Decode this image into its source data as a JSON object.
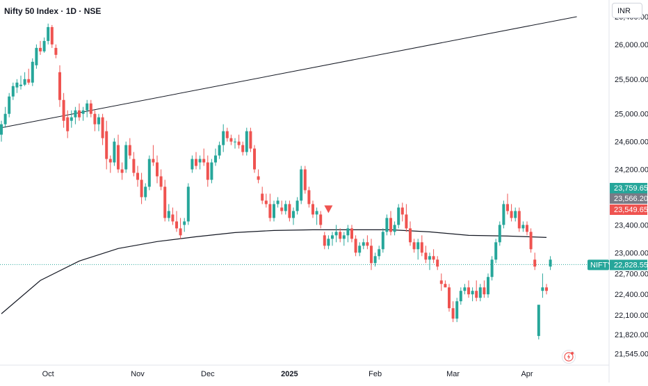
{
  "header": {
    "title": "Nifty 50 Index · 1D · NSE",
    "currency": "INR"
  },
  "colors": {
    "up": "#26a69a",
    "down": "#ef5350",
    "ma": "#131722",
    "trendline": "#131722",
    "price_line": "#26a69a",
    "grey_tag": "#787b86",
    "marker": "#ef5350"
  },
  "chart_data": {
    "type": "candlestick",
    "title": "Nifty 50 Index · 1D · NSE",
    "y_ticks": [
      26400,
      26000,
      25500,
      25000,
      24600,
      24200,
      23400,
      23000,
      22700,
      22400,
      22100,
      21820,
      21545
    ],
    "y_tick_labels": [
      "26,400.00",
      "26,000.00",
      "25,500.00",
      "25,000.00",
      "24,600.00",
      "24,200.00",
      "23,400.00",
      "23,000.00",
      "22,700.00",
      "22,400.00",
      "22,100.00",
      "21,820.00",
      "21,545.00"
    ],
    "ylim": [
      21380,
      26640
    ],
    "x_labels": [
      {
        "index": 12,
        "label": "Oct"
      },
      {
        "index": 35,
        "label": "Nov"
      },
      {
        "index": 53,
        "label": "Dec"
      },
      {
        "index": 74,
        "label": "2025"
      },
      {
        "index": 96,
        "label": "Feb"
      },
      {
        "index": 116,
        "label": "Mar"
      },
      {
        "index": 135,
        "label": "Apr"
      }
    ],
    "x_count": 147,
    "candles": [
      [
        24700,
        24900,
        24600,
        24850
      ],
      [
        24850,
        25100,
        24800,
        25000
      ],
      [
        25000,
        25300,
        24950,
        25250
      ],
      [
        25250,
        25450,
        25200,
        25400
      ],
      [
        25380,
        25500,
        25300,
        25450
      ],
      [
        25400,
        25550,
        25350,
        25420
      ],
      [
        25420,
        25600,
        25400,
        25500
      ],
      [
        25500,
        25650,
        25420,
        25450
      ],
      [
        25450,
        25800,
        25400,
        25750
      ],
      [
        25700,
        26000,
        25650,
        25950
      ],
      [
        25950,
        26050,
        25850,
        25900
      ],
      [
        25900,
        26100,
        25880,
        26050
      ],
      [
        26050,
        26300,
        26000,
        26250
      ],
      [
        26250,
        26280,
        25950,
        26000
      ],
      [
        25950,
        26000,
        25800,
        25850
      ],
      [
        25600,
        25700,
        25100,
        25200
      ],
      [
        25200,
        25300,
        24800,
        24900
      ],
      [
        24950,
        25050,
        24650,
        24750
      ],
      [
        24900,
        25050,
        24800,
        24950
      ],
      [
        24950,
        25100,
        24850,
        25050
      ],
      [
        25050,
        25150,
        24900,
        24950
      ],
      [
        25000,
        25100,
        24900,
        25050
      ],
      [
        25050,
        25200,
        24950,
        25150
      ],
      [
        25150,
        25200,
        24950,
        25000
      ],
      [
        25000,
        25050,
        24750,
        24850
      ],
      [
        24850,
        25000,
        24750,
        24950
      ],
      [
        24950,
        25000,
        24550,
        24650
      ],
      [
        24750,
        24900,
        24200,
        24350
      ],
      [
        24350,
        24400,
        24150,
        24300
      ],
      [
        24300,
        24650,
        24250,
        24600
      ],
      [
        24550,
        24700,
        24150,
        24200
      ],
      [
        24200,
        24300,
        24050,
        24150
      ],
      [
        24200,
        24600,
        24150,
        24550
      ],
      [
        24550,
        24650,
        24350,
        24400
      ],
      [
        24350,
        24450,
        24100,
        24150
      ],
      [
        24150,
        24250,
        23950,
        24050
      ],
      [
        24050,
        24150,
        23700,
        23800
      ],
      [
        23800,
        24000,
        23750,
        23950
      ],
      [
        23950,
        24400,
        23900,
        24350
      ],
      [
        24350,
        24550,
        24250,
        24300
      ],
      [
        24300,
        24400,
        24000,
        24100
      ],
      [
        24100,
        24200,
        23900,
        23950
      ],
      [
        23950,
        24050,
        23450,
        23500
      ],
      [
        23500,
        23700,
        23450,
        23600
      ],
      [
        23550,
        23650,
        23400,
        23450
      ],
      [
        23450,
        23600,
        23300,
        23350
      ],
      [
        23350,
        23500,
        23200,
        23250
      ],
      [
        23400,
        23500,
        23300,
        23450
      ],
      [
        23450,
        24000,
        23400,
        23950
      ],
      [
        24200,
        24400,
        24150,
        24350
      ],
      [
        24350,
        24450,
        24200,
        24250
      ],
      [
        24300,
        24400,
        24200,
        24350
      ],
      [
        24350,
        24500,
        24250,
        24300
      ],
      [
        24300,
        24400,
        23950,
        24050
      ],
      [
        24050,
        24350,
        24000,
        24300
      ],
      [
        24300,
        24500,
        24250,
        24400
      ],
      [
        24400,
        24600,
        24350,
        24550
      ],
      [
        24550,
        24850,
        24450,
        24750
      ],
      [
        24750,
        24800,
        24600,
        24650
      ],
      [
        24650,
        24700,
        24550,
        24600
      ],
      [
        24600,
        24650,
        24500,
        24600
      ],
      [
        24600,
        24700,
        24500,
        24550
      ],
      [
        24550,
        24600,
        24400,
        24450
      ],
      [
        24450,
        24800,
        24400,
        24750
      ],
      [
        24750,
        24800,
        24450,
        24500
      ],
      [
        24500,
        24550,
        24150,
        24200
      ],
      [
        24100,
        24200,
        24000,
        24050
      ],
      [
        23850,
        23950,
        23700,
        23750
      ],
      [
        23750,
        23850,
        23650,
        23700
      ],
      [
        23700,
        23850,
        23450,
        23500
      ],
      [
        23500,
        23750,
        23450,
        23700
      ],
      [
        23700,
        23800,
        23650,
        23750
      ],
      [
        23650,
        23750,
        23550,
        23600
      ],
      [
        23600,
        23750,
        23550,
        23700
      ],
      [
        23700,
        23750,
        23450,
        23500
      ],
      [
        23500,
        23650,
        23400,
        23600
      ],
      [
        23600,
        23800,
        23550,
        23750
      ],
      [
        23750,
        24250,
        23700,
        24200
      ],
      [
        24200,
        24250,
        23850,
        23900
      ],
      [
        23900,
        23950,
        23650,
        23700
      ],
      [
        23700,
        23750,
        23500,
        23550
      ],
      [
        23550,
        23650,
        23400,
        23600
      ],
      [
        23550,
        23600,
        23350,
        23400
      ],
      [
        23250,
        23300,
        23050,
        23100
      ],
      [
        23100,
        23250,
        23050,
        23200
      ],
      [
        23200,
        23300,
        23100,
        23250
      ],
      [
        23250,
        23400,
        23150,
        23300
      ],
      [
        23300,
        23350,
        23150,
        23200
      ],
      [
        23200,
        23300,
        23100,
        23250
      ],
      [
        23250,
        23400,
        23150,
        23350
      ],
      [
        23350,
        23400,
        23150,
        23200
      ],
      [
        23200,
        23250,
        22950,
        23000
      ],
      [
        23000,
        23150,
        22950,
        23100
      ],
      [
        23100,
        23200,
        23050,
        23150
      ],
      [
        23150,
        23250,
        23050,
        23100
      ],
      [
        23100,
        23200,
        22750,
        22850
      ],
      [
        22850,
        23000,
        22800,
        22950
      ],
      [
        22950,
        23100,
        22900,
        23050
      ],
      [
        23050,
        23350,
        23000,
        23300
      ],
      [
        23300,
        23550,
        23250,
        23500
      ],
      [
        23500,
        23600,
        23250,
        23300
      ],
      [
        23300,
        23450,
        23250,
        23400
      ],
      [
        23400,
        23700,
        23350,
        23650
      ],
      [
        23650,
        23720,
        23450,
        23550
      ],
      [
        23550,
        23700,
        23300,
        23350
      ],
      [
        23350,
        23450,
        23100,
        23150
      ],
      [
        23150,
        23200,
        23000,
        23050
      ],
      [
        23050,
        23200,
        22900,
        23150
      ],
      [
        23150,
        23250,
        22950,
        23000
      ],
      [
        23000,
        23100,
        22850,
        22900
      ],
      [
        22900,
        23000,
        22750,
        22950
      ],
      [
        22950,
        23050,
        22850,
        22900
      ],
      [
        22900,
        22950,
        22750,
        22800
      ],
      [
        22600,
        22700,
        22450,
        22550
      ],
      [
        22550,
        22600,
        22500,
        22500
      ],
      [
        22500,
        22550,
        22150,
        22200
      ],
      [
        22200,
        22300,
        22000,
        22050
      ],
      [
        22050,
        22350,
        22000,
        22300
      ],
      [
        22300,
        22500,
        22250,
        22450
      ],
      [
        22450,
        22550,
        22400,
        22500
      ],
      [
        22500,
        22600,
        22350,
        22400
      ],
      [
        22400,
        22500,
        22300,
        22450
      ],
      [
        22450,
        22600,
        22300,
        22350
      ],
      [
        22350,
        22550,
        22300,
        22500
      ],
      [
        22500,
        22600,
        22350,
        22400
      ],
      [
        22400,
        22700,
        22350,
        22650
      ],
      [
        22650,
        22950,
        22600,
        22900
      ],
      [
        22900,
        23200,
        22850,
        23150
      ],
      [
        23150,
        23450,
        23100,
        23400
      ],
      [
        23400,
        23750,
        23350,
        23700
      ],
      [
        23700,
        23850,
        23550,
        23600
      ],
      [
        23600,
        23700,
        23450,
        23500
      ],
      [
        23500,
        23650,
        23450,
        23600
      ],
      [
        23600,
        23650,
        23300,
        23350
      ],
      [
        23350,
        23450,
        23300,
        23400
      ],
      [
        23400,
        23450,
        23250,
        23300
      ],
      [
        23300,
        23350,
        23000,
        23050
      ],
      [
        22900,
        23000,
        22750,
        22800
      ],
      [
        21800,
        22200,
        21750,
        22250
      ],
      [
        22450,
        22700,
        22350,
        22500
      ],
      [
        22500,
        22550,
        22400,
        22450
      ],
      [
        22800,
        22950,
        22750,
        22900
      ]
    ],
    "moving_average": {
      "points": [
        [
          0,
          22120
        ],
        [
          10,
          22600
        ],
        [
          20,
          22880
        ],
        [
          30,
          23060
        ],
        [
          40,
          23160
        ],
        [
          50,
          23230
        ],
        [
          60,
          23290
        ],
        [
          70,
          23320
        ],
        [
          80,
          23330
        ],
        [
          90,
          23330
        ],
        [
          100,
          23330
        ],
        [
          110,
          23300
        ],
        [
          120,
          23250
        ],
        [
          130,
          23240
        ],
        [
          140,
          23220
        ]
      ]
    },
    "trendline": {
      "from": [
        0,
        24800
      ],
      "to": [
        146,
        26400
      ]
    },
    "marker": {
      "index": 84,
      "price": 23620
    },
    "current_price": 22828.55,
    "price_tags": [
      {
        "label": "23,759.65",
        "price": 23759.65,
        "color": "#26a69a"
      },
      {
        "label": "23,566.20",
        "price": 23566.2,
        "color": "#787b86"
      },
      {
        "label": "23,549.65",
        "price": 23549.65,
        "color": "#ef5350"
      }
    ],
    "price_line": {
      "symbol": "NIFTY",
      "label": "22,828.55",
      "price": 22828.55
    },
    "grid": false
  }
}
